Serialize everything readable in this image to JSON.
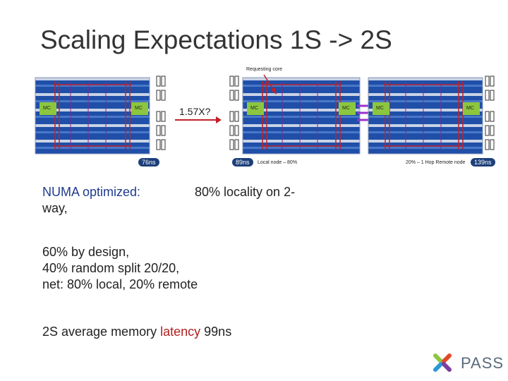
{
  "slide": {
    "title": "Scaling Expectations 1S -> 2S"
  },
  "diagram": {
    "requesting_core": "Requesting core",
    "mc_label": "MC",
    "speedup": "1.57X?",
    "latency_single": "76ns",
    "latency_local": "89ns",
    "local_node_label": "Local node – 80%",
    "remote_node_label": "20% – 1 Hop Remote node",
    "latency_remote": "139ns"
  },
  "body": {
    "numa_prefix": "NUMA optimized:",
    "numa_suffix": "80% locality on 2-",
    "numa_line2": "way,",
    "line_design": "60% by design,",
    "line_random": "40% random split 20/20,",
    "line_net": "net: 80% local, 20% remote",
    "avg_prefix": "2S average memory",
    "avg_highlight": "latency",
    "avg_value": "99ns"
  },
  "logo": {
    "text": "PASS"
  },
  "colors": {
    "die_blue": "#1f4fa8",
    "mc_green": "#8cc63f",
    "accent_red": "#b22020",
    "qpi_purple": "#9933cc"
  }
}
